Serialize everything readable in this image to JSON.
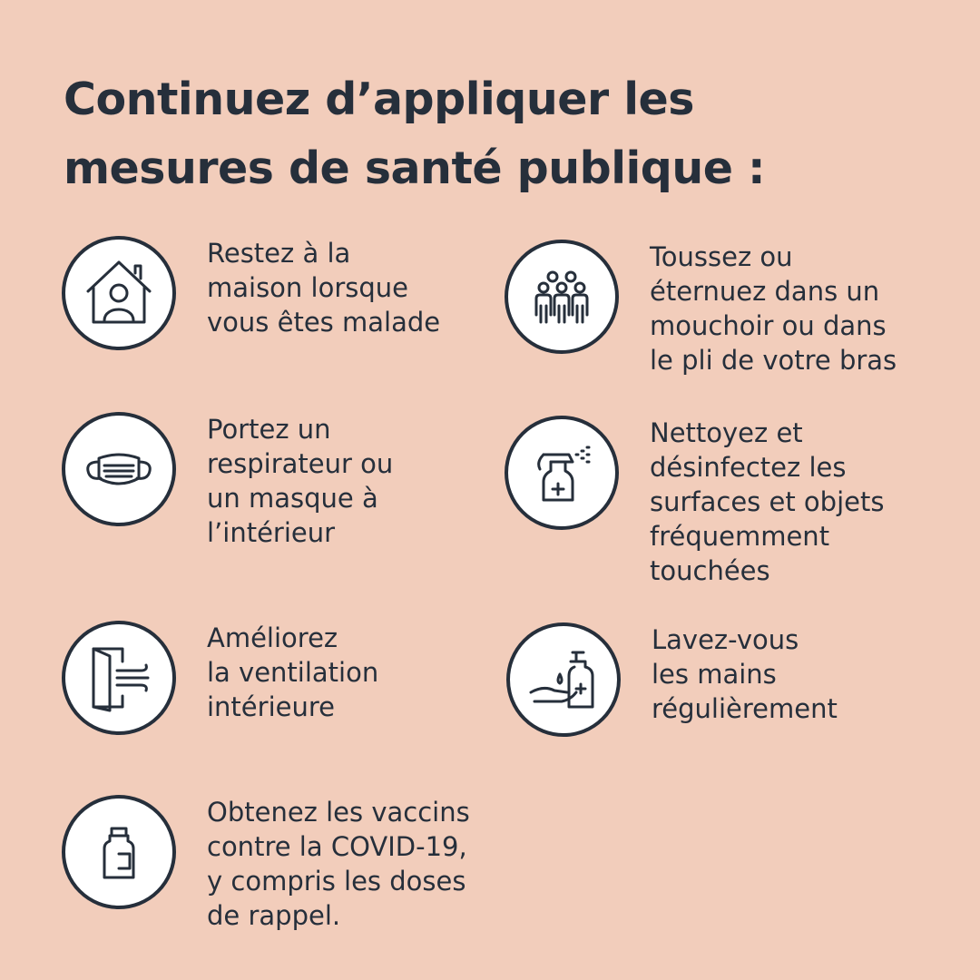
{
  "title": "Continuez d’appliquer les\nmesures de santé publique :",
  "colors": {
    "background": "#f2cdbb",
    "text": "#262f3b",
    "circle": "#ffffff"
  },
  "items": [
    {
      "icon": "house-person-icon",
      "text": "Restez à la\nmaison lorsque\nvous êtes malade"
    },
    {
      "icon": "mask-icon",
      "text": "Portez un\nrespirateur ou\nun masque à\nl’intérieur"
    },
    {
      "icon": "ventilation-door-icon",
      "text": "Améliorez\nla ventilation\nintérieure"
    },
    {
      "icon": "vaccine-vial-icon",
      "text": "Obtenez les vaccins\ncontre la COVID-19,\ny compris les doses\nde rappel."
    },
    {
      "icon": "group-people-icon",
      "text": "Toussez ou\néternuez dans un\nmouchoir ou dans\nle pli de votre bras"
    },
    {
      "icon": "spray-bottle-icon",
      "text": "Nettoyez et\ndésinfectez les\nsurfaces et objets\nfréquemment\ntouchées"
    },
    {
      "icon": "hand-sanitizer-icon",
      "text": "Lavez-vous\nles mains\nrégulièrement"
    }
  ]
}
